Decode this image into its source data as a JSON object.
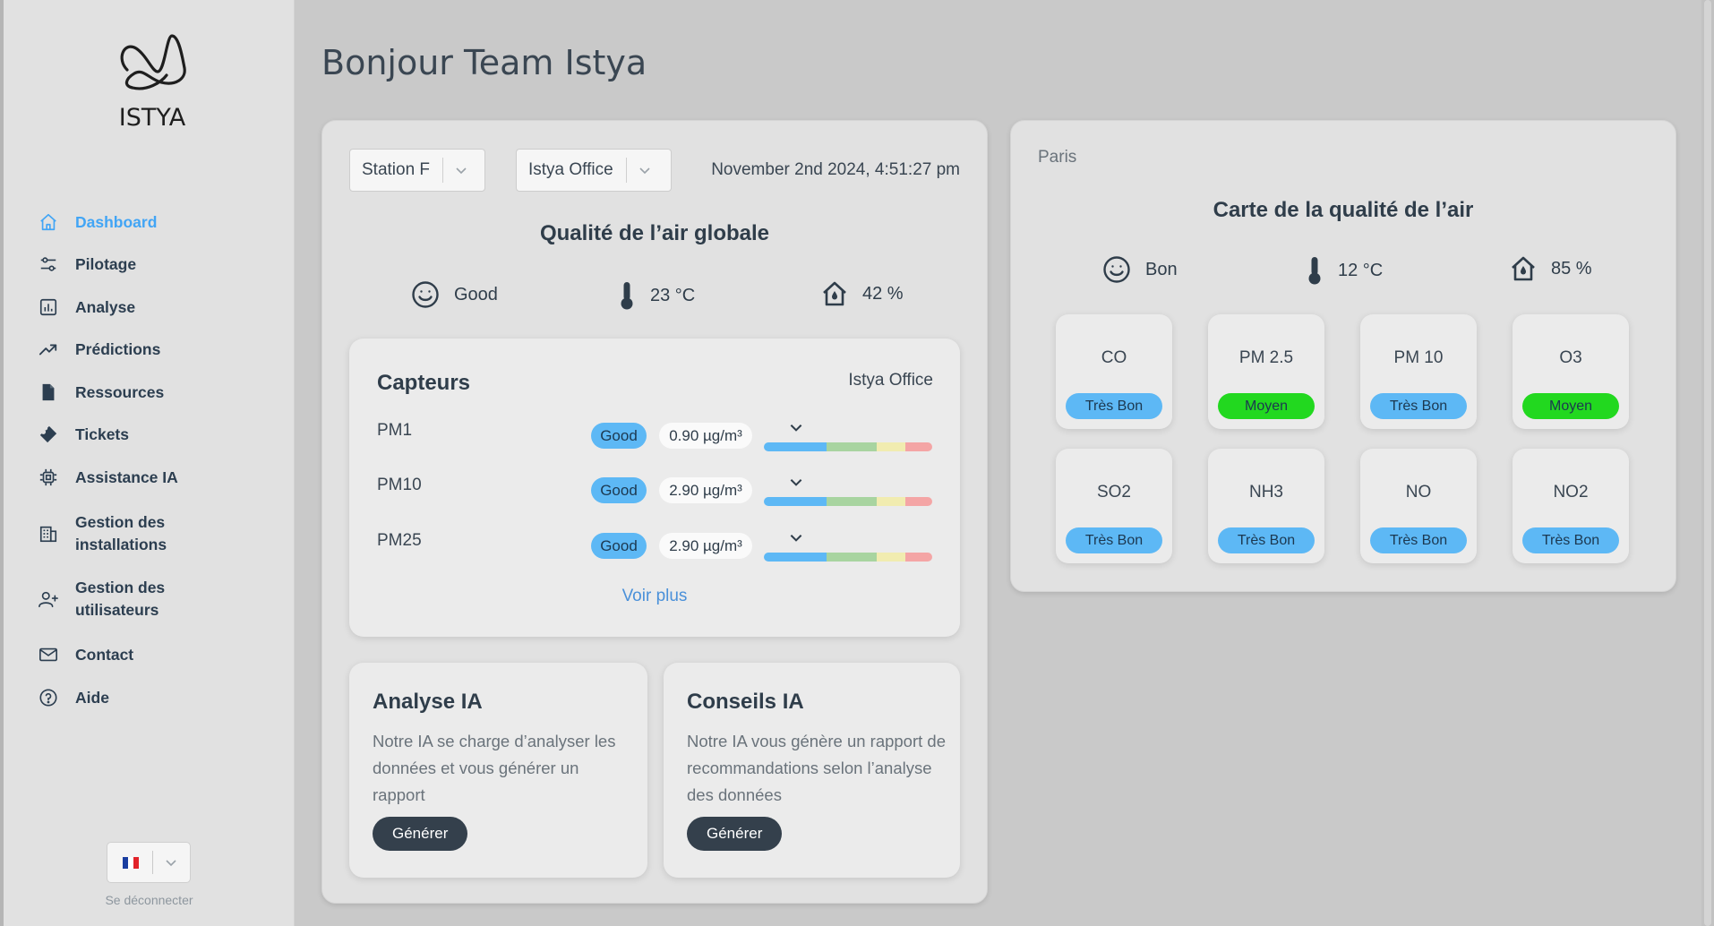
{
  "brand": {
    "name": "ISTYA"
  },
  "sidebar": {
    "items": [
      {
        "label": "Dashboard",
        "icon": "home-icon"
      },
      {
        "label": "Pilotage",
        "icon": "sliders-icon"
      },
      {
        "label": "Analyse",
        "icon": "bar-chart-icon"
      },
      {
        "label": "Prédictions",
        "icon": "trend-up-icon"
      },
      {
        "label": "Ressources",
        "icon": "document-icon"
      },
      {
        "label": "Tickets",
        "icon": "ticket-icon"
      },
      {
        "label": "Assistance IA",
        "icon": "chip-icon"
      },
      {
        "label": "Gestion des",
        "label2": "installations",
        "icon": "building-icon"
      },
      {
        "label": "Gestion des",
        "label2": "utilisateurs",
        "icon": "add-user-icon"
      },
      {
        "label": "Contact",
        "icon": "mail-icon"
      },
      {
        "label": "Aide",
        "icon": "help-icon"
      }
    ],
    "language": {
      "flag": "fr-flag-icon"
    },
    "logout": "Se déconnecter"
  },
  "header": {
    "greeting": "Bonjour Team Istya"
  },
  "overview": {
    "site_select": "Station F",
    "room_select": "Istya Office",
    "datetime": "November 2nd 2024, 4:51:27 pm",
    "title": "Qualité de l’air globale",
    "quality": "Good",
    "temperature": "23 °C",
    "humidity": "42 %"
  },
  "sensors": {
    "title": "Capteurs",
    "location": "Istya Office",
    "rows": [
      {
        "name": "PM1",
        "status": "Good",
        "value": "0.90 µg/m³"
      },
      {
        "name": "PM10",
        "status": "Good",
        "value": "2.90 µg/m³"
      },
      {
        "name": "PM25",
        "status": "Good",
        "value": "2.90 µg/m³"
      }
    ],
    "more": "Voir plus"
  },
  "ia_analysis": {
    "title": "Analyse IA",
    "text": "Notre IA se charge d’analyser les données et vous générer un rapport",
    "button": "Générer"
  },
  "ia_advice": {
    "title": "Conseils IA",
    "text": "Notre IA vous génère un rapport de recommandations selon l’analyse des données",
    "button": "Générer"
  },
  "map": {
    "city": "Paris",
    "title": "Carte de la qualité de l’air",
    "quality": "Bon",
    "temperature": "12 °C",
    "humidity": "85 %",
    "pollutants": [
      {
        "name": "CO",
        "status": "Très Bon"
      },
      {
        "name": "PM 2.5",
        "status": "Moyen"
      },
      {
        "name": "PM 10",
        "status": "Très Bon"
      },
      {
        "name": "O3",
        "status": "Moyen"
      },
      {
        "name": "SO2",
        "status": "Très Bon"
      },
      {
        "name": "NH3",
        "status": "Très Bon"
      },
      {
        "name": "NO",
        "status": "Très Bon"
      },
      {
        "name": "NO2",
        "status": "Très Bon"
      }
    ]
  },
  "colors": {
    "accent": "#42a5f5",
    "good": "#5db8f5",
    "medium": "#22d81f",
    "dark_button": "#34404c",
    "scale": [
      "#5db8f5",
      "#a8d4a0",
      "#f1ecb0",
      "#f4a5a5"
    ]
  }
}
